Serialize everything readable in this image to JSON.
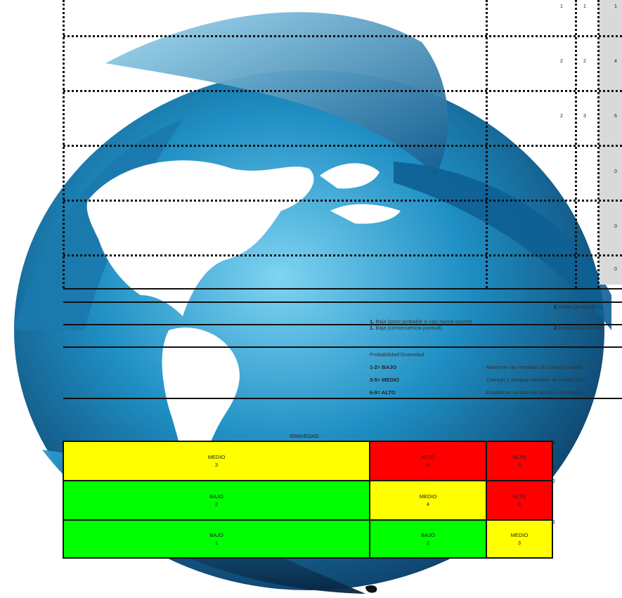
{
  "colors": {
    "bajo": "#00ff00",
    "medio": "#ffff00",
    "alto": "#ff0000",
    "header_col": "#d9d9d9"
  },
  "background": {
    "icon": "globe-icon"
  },
  "table_rows": [
    {
      "p": "1",
      "g": "1",
      "total": "1"
    },
    {
      "p": "2",
      "g": "2",
      "total": "4"
    },
    {
      "p": "2",
      "g": "3",
      "total": "6"
    },
    {
      "p": "",
      "g": "",
      "total": "0"
    },
    {
      "p": "",
      "g": "",
      "total": "0"
    },
    {
      "p": "",
      "g": "",
      "total": "0"
    }
  ],
  "legend": {
    "probabilidad_baja_num": "1.",
    "probabilidad_baja": " Baja (poco probable o casi nunca ocurre)",
    "probabilidad_media_num": "2.",
    "probabilidad_media": "Media (probable, o",
    "gravedad_baja_num": "1.",
    "gravedad_baja": " Baja (consecuencia puntual)",
    "gravedad_media_num": "2.",
    "gravedad_media": "Media (consecuenc",
    "formula": "Probabilidad*Gravedad",
    "levels": [
      {
        "range": "1-2= BAJO",
        "action": "Mantener las medidas de control existent"
      },
      {
        "range": "3-5= MEDIO",
        "action": "Corregir y adoptar medidas de control inn"
      },
      {
        "range": "6-9= ALTO",
        "action": "Establecer un plan de acción y de mejora"
      }
    ]
  },
  "matrix": {
    "header": "GRAVEDAD",
    "rows": [
      {
        "label": "3",
        "cells": [
          {
            "level": "MEDIO",
            "value": "3"
          },
          {
            "level": "ALTO",
            "value": "6"
          },
          {
            "level": "ALTO",
            "value": "9"
          }
        ]
      },
      {
        "label": "2",
        "cells": [
          {
            "level": "BAJO",
            "value": "2"
          },
          {
            "level": "MEDIO",
            "value": "4"
          },
          {
            "level": "ALTO",
            "value": "6"
          }
        ]
      },
      {
        "label": "1",
        "cells": [
          {
            "level": "BAJO",
            "value": "1"
          },
          {
            "level": "BAJO",
            "value": "2"
          },
          {
            "level": "MEDIO",
            "value": "3"
          }
        ]
      }
    ]
  }
}
